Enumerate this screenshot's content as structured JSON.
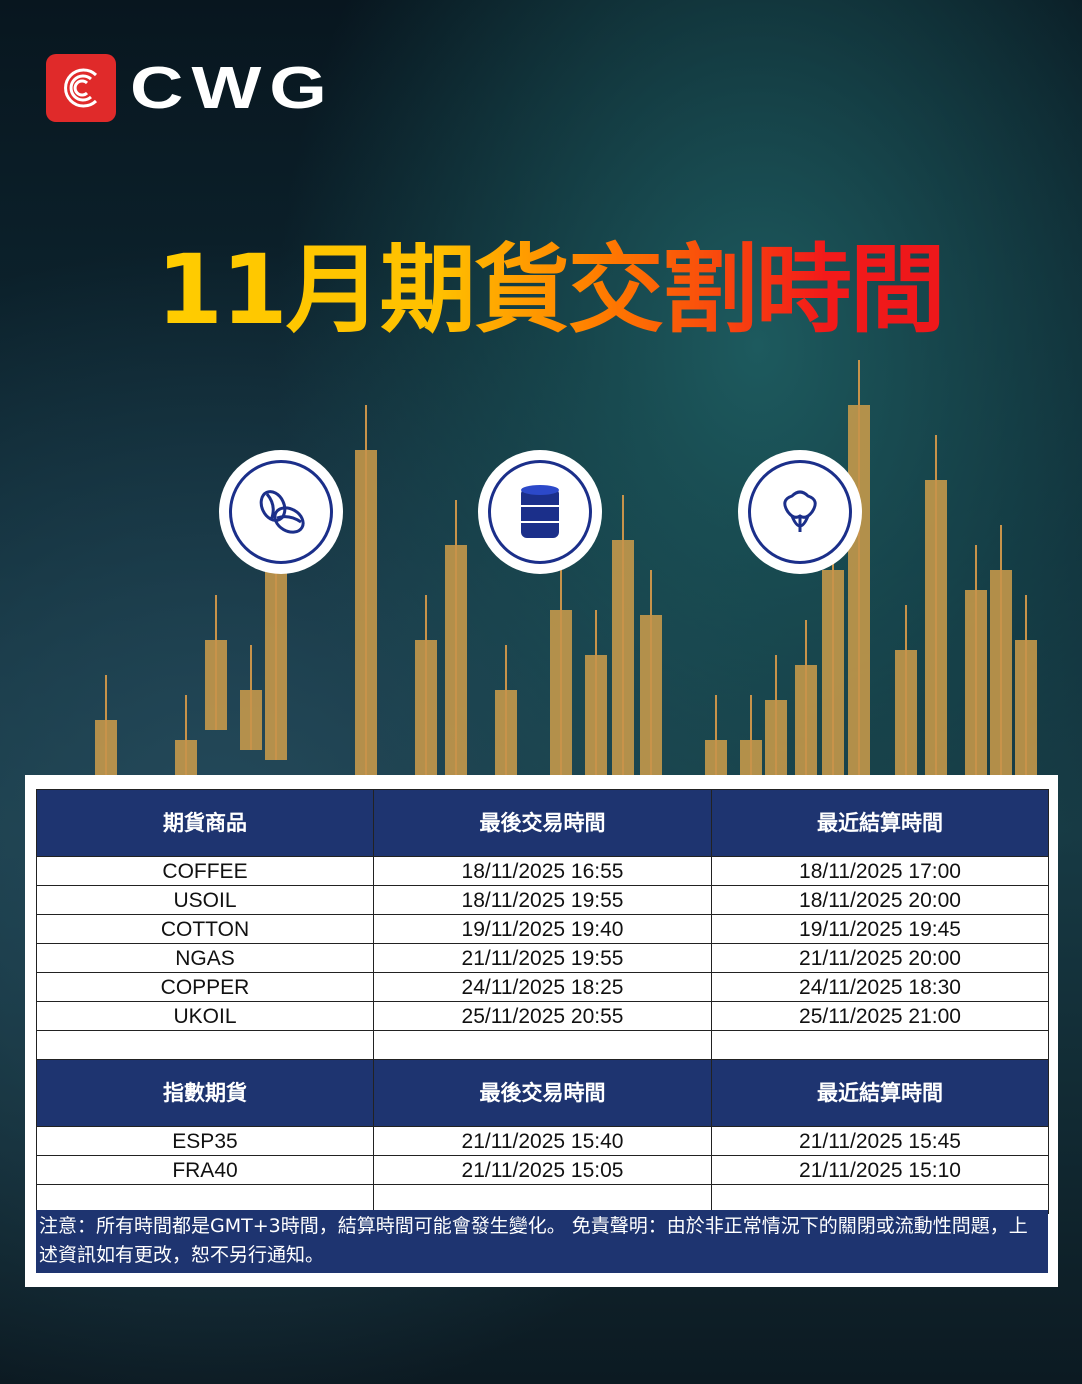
{
  "brand": {
    "name": "CWG",
    "logo_color": "#e02a2a"
  },
  "title": "11月期貨交割時間",
  "icons": [
    "coffee-beans-icon",
    "oil-barrel-icon",
    "cotton-icon"
  ],
  "commodities": {
    "headers": [
      "期貨商品",
      "最後交易時間",
      "最近結算時間"
    ],
    "rows": [
      [
        "COFFEE",
        "18/11/2025 16:55",
        "18/11/2025 17:00"
      ],
      [
        "USOIL",
        "18/11/2025 19:55",
        "18/11/2025 20:00"
      ],
      [
        "COTTON",
        "19/11/2025 19:40",
        "19/11/2025 19:45"
      ],
      [
        "NGAS",
        "21/11/2025 19:55",
        "21/11/2025 20:00"
      ],
      [
        "COPPER",
        "24/11/2025 18:25",
        "24/11/2025 18:30"
      ],
      [
        "UKOIL",
        "25/11/2025 20:55",
        "25/11/2025 21:00"
      ]
    ]
  },
  "indices": {
    "headers": [
      "指數期貨",
      "最後交易時間",
      "最近結算時間"
    ],
    "rows": [
      [
        "ESP35",
        "21/11/2025 15:40",
        "21/11/2025 15:45"
      ],
      [
        "FRA40",
        "21/11/2025 15:05",
        "21/11/2025 15:10"
      ]
    ]
  },
  "note": "注意：所有時間都是GMT+3時間，結算時間可能會發生變化。 免責聲明：由於非正常情況下的關閉或流動性問題，上述資訊如有更改，恕不另行通知。",
  "colors": {
    "header_bg": "#1e3470",
    "title_start": "#ffd400",
    "title_end": "#e8141c"
  }
}
